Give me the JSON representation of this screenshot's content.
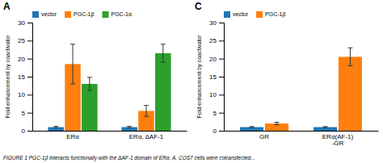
{
  "chart_data": [
    {
      "type": "bar",
      "title": "A",
      "ylabel": "Fold enhancement by coactivator",
      "categories": [
        "ERα",
        "ERα, ΔAF-1"
      ],
      "series": [
        {
          "name": "vector",
          "values": [
            1.0,
            1.0
          ],
          "errors": [
            0.2,
            0.2
          ]
        },
        {
          "name": "PGC-1β",
          "values": [
            18.5,
            5.5
          ],
          "errors": [
            5.5,
            1.5
          ]
        },
        {
          "name": "PGC-1α",
          "values": [
            13.0,
            21.5
          ],
          "errors": [
            1.8,
            2.5
          ]
        }
      ],
      "ylim": [
        0,
        30
      ],
      "yticks": [
        0,
        5,
        10,
        15,
        20,
        25,
        30
      ],
      "legend": "upper left",
      "grid": false,
      "annotations": [
        "FIGURE 1  PGC-1β interacts functionally with the ΔAF-1 domain of ERα. A, COS7 cells were cotransfected..."
      ]
    },
    {
      "type": "bar",
      "title": "C",
      "ylabel": "Fold enhancement by coactivator",
      "categories": [
        "GR",
        "ERα(AF-1)\n-GR"
      ],
      "series": [
        {
          "name": "vector",
          "values": [
            1.0,
            1.0
          ],
          "errors": [
            0.15,
            0.15
          ]
        },
        {
          "name": "PGC-1β",
          "values": [
            2.0,
            20.5
          ],
          "errors": [
            0.35,
            2.5
          ]
        }
      ],
      "ylim": [
        0,
        30
      ],
      "yticks": [
        0,
        5,
        10,
        15,
        20,
        25,
        30
      ],
      "legend": "upper left",
      "grid": false
    }
  ]
}
